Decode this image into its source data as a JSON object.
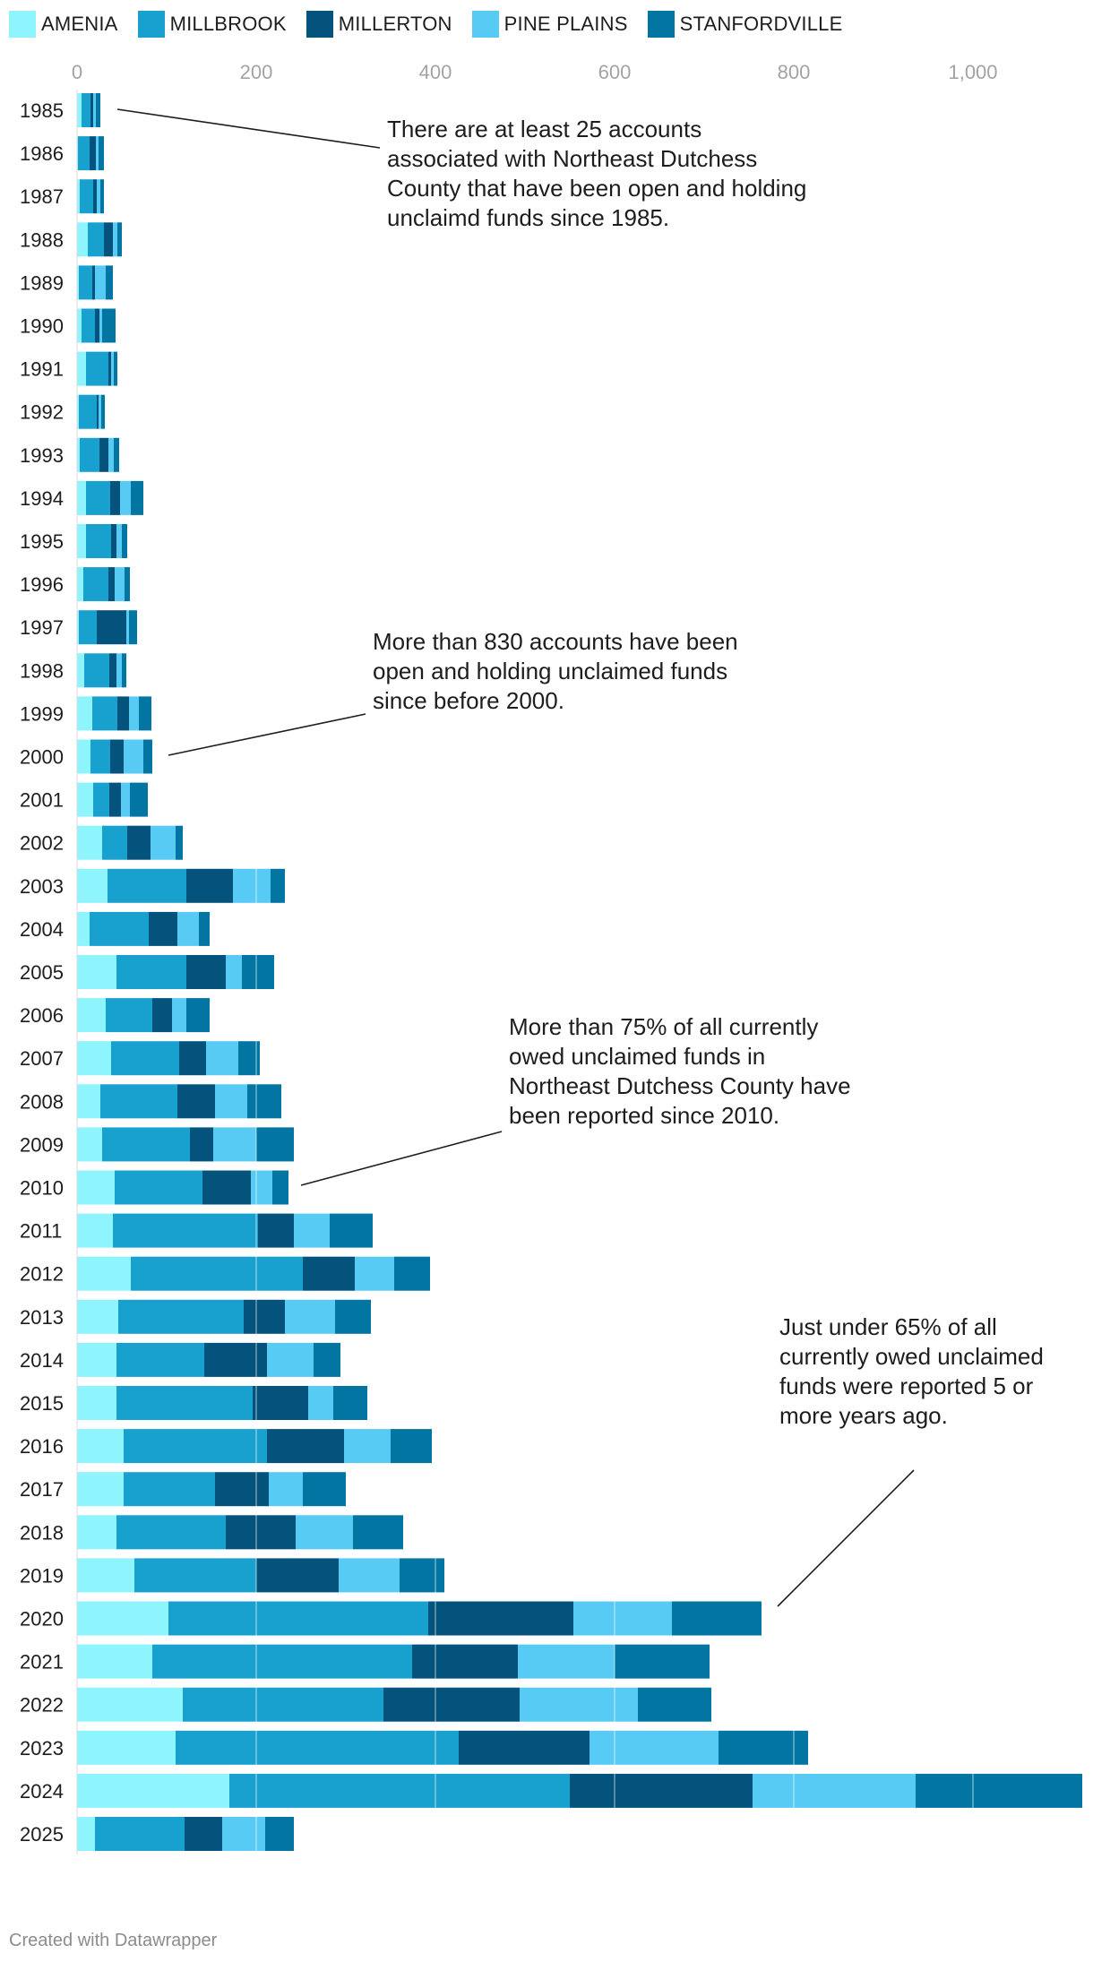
{
  "legend": [
    {
      "name": "AMENIA",
      "color": "#8ef4fd"
    },
    {
      "name": "MILLBROOK",
      "color": "#18a1cf"
    },
    {
      "name": "MILLERTON",
      "color": "#04537c"
    },
    {
      "name": "PINE PLAINS",
      "color": "#58cbf5"
    },
    {
      "name": "STANFORDVILLE",
      "color": "#0275a3"
    }
  ],
  "chart_data": {
    "type": "bar",
    "orientation": "horizontal",
    "stacked": true,
    "axis": {
      "min": 0,
      "max": 1120,
      "ticks": [
        0,
        200,
        400,
        600,
        800,
        1000
      ],
      "tick_labels": [
        "0",
        "200",
        "400",
        "600",
        "800",
        "1,000"
      ],
      "position": "top",
      "grid": true
    },
    "categories": [
      "1985",
      "1986",
      "1987",
      "1988",
      "1989",
      "1990",
      "1991",
      "1992",
      "1993",
      "1994",
      "1995",
      "1996",
      "1997",
      "1998",
      "1999",
      "2000",
      "2001",
      "2002",
      "2003",
      "2004",
      "2005",
      "2006",
      "2007",
      "2008",
      "2009",
      "2010",
      "2011",
      "2012",
      "2013",
      "2014",
      "2015",
      "2016",
      "2017",
      "2018",
      "2019",
      "2020",
      "2021",
      "2022",
      "2023",
      "2024",
      "2025"
    ],
    "series": [
      {
        "name": "AMENIA",
        "color": "#8ef4fd",
        "values": [
          5,
          1,
          3,
          12,
          2,
          5,
          10,
          2,
          3,
          10,
          10,
          7,
          2,
          8,
          17,
          15,
          18,
          28,
          34,
          14,
          44,
          32,
          38,
          26,
          28,
          42,
          40,
          60,
          46,
          44,
          44,
          52,
          52,
          44,
          64,
          102,
          84,
          118,
          110,
          170,
          20
        ]
      },
      {
        "name": "MILLBROOK",
        "color": "#18a1cf",
        "values": [
          10,
          13,
          15,
          18,
          15,
          15,
          25,
          20,
          22,
          27,
          28,
          28,
          20,
          28,
          28,
          22,
          18,
          28,
          88,
          66,
          78,
          52,
          76,
          86,
          98,
          98,
          162,
          192,
          140,
          98,
          152,
          160,
          102,
          122,
          136,
          290,
          290,
          224,
          316,
          380,
          100
        ]
      },
      {
        "name": "MILLERTON",
        "color": "#04537c",
        "values": [
          3,
          7,
          4,
          10,
          3,
          5,
          3,
          2,
          10,
          11,
          6,
          7,
          33,
          8,
          13,
          15,
          13,
          26,
          52,
          32,
          44,
          22,
          30,
          42,
          26,
          54,
          40,
          58,
          46,
          70,
          62,
          86,
          60,
          78,
          92,
          162,
          118,
          152,
          146,
          204,
          42
        ]
      },
      {
        "name": "PINE PLAINS",
        "color": "#58cbf5",
        "values": [
          3,
          3,
          4,
          5,
          12,
          3,
          3,
          3,
          6,
          12,
          6,
          11,
          3,
          6,
          11,
          22,
          10,
          28,
          42,
          24,
          18,
          16,
          36,
          36,
          48,
          24,
          40,
          44,
          56,
          52,
          28,
          52,
          38,
          64,
          68,
          110,
          108,
          132,
          144,
          182,
          48
        ]
      },
      {
        "name": "STANFORDVILLE",
        "color": "#0275a3",
        "values": [
          5,
          6,
          4,
          5,
          8,
          15,
          4,
          4,
          6,
          14,
          6,
          6,
          9,
          5,
          14,
          10,
          20,
          8,
          16,
          12,
          36,
          26,
          24,
          38,
          42,
          18,
          48,
          40,
          40,
          30,
          38,
          46,
          48,
          56,
          50,
          100,
          106,
          82,
          100,
          186,
          32
        ]
      }
    ]
  },
  "annotations": [
    {
      "text": "There are at least 25 accounts associated with Northeast Dutchess County that have been open and holding unclaimd funds since 1985."
    },
    {
      "text": "More than 830 accounts have been open and holding unclaimed funds since before 2000."
    },
    {
      "text": "More than 75% of all currently owed unclaimed funds in Northeast Dutchess County have been reported since 2010."
    },
    {
      "text": "Just under 65% of all currently owed unclaimed funds were reported 5 or more years ago."
    }
  ],
  "credit": "Created with Datawrapper"
}
